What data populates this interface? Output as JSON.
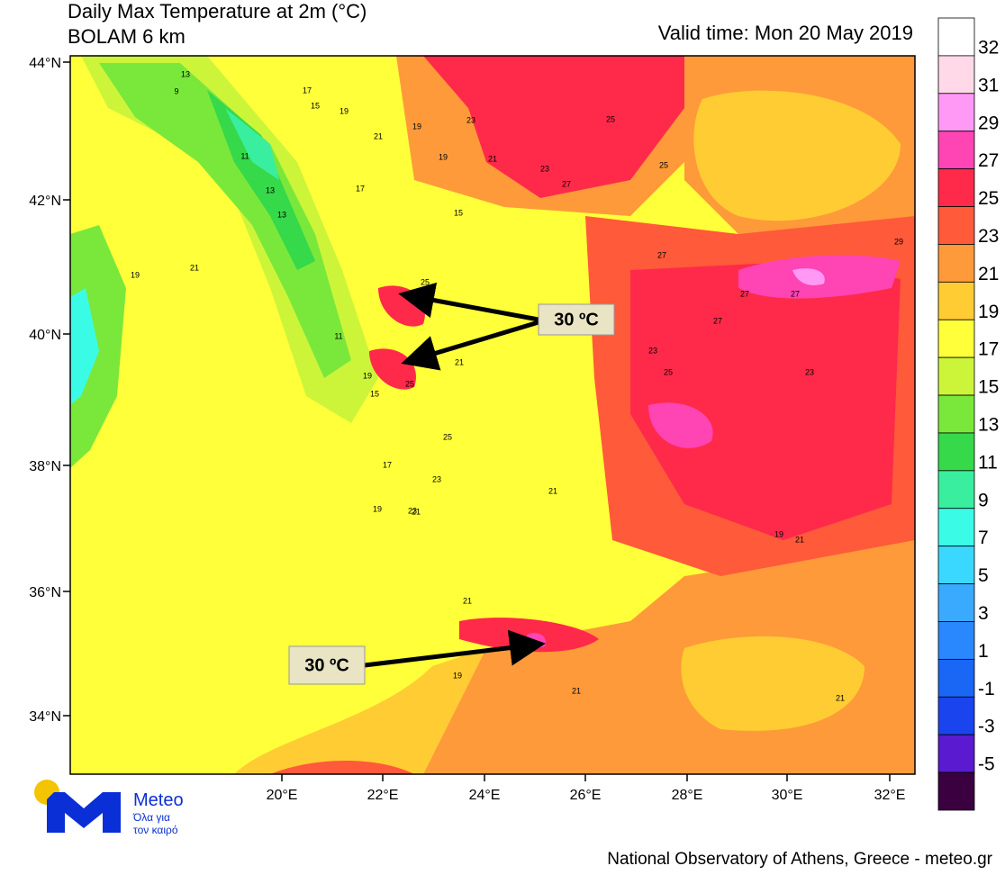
{
  "header": {
    "title": "Daily Max Temperature at 2m (°C)",
    "subtitle": "BOLAM 6 km",
    "valid_time": "Valid time: Mon 20 May 2019"
  },
  "map": {
    "lat_labels": [
      "44°N",
      "42°N",
      "40°N",
      "38°N",
      "36°N",
      "34°N"
    ],
    "lon_labels": [
      "20°E",
      "22°E",
      "24°E",
      "26°E",
      "28°E",
      "30°E",
      "32°E"
    ],
    "contour_labels": [
      "13",
      "9",
      "11",
      "13",
      "17",
      "15",
      "19",
      "21",
      "23",
      "27",
      "25",
      "19",
      "21",
      "23",
      "25",
      "27",
      "19",
      "17",
      "15",
      "19",
      "21",
      "25",
      "27",
      "29",
      "27",
      "25",
      "23",
      "21",
      "19",
      "17",
      "13",
      "11",
      "15",
      "19",
      "21",
      "23",
      "25",
      "27",
      "23",
      "21",
      "19",
      "21",
      "25",
      "23",
      "21",
      "19",
      "21",
      "21"
    ],
    "annotations": [
      "30 ºC",
      "30 ºC"
    ]
  },
  "colorbar": {
    "top_color": "#ffffff",
    "levels": [
      {
        "label": 32,
        "color": "#ffd9e8"
      },
      {
        "label": 31,
        "color": "#ff99f5"
      },
      {
        "label": 29,
        "color": "#ff44b4"
      },
      {
        "label": 27,
        "color": "#ff2a4a"
      },
      {
        "label": 25,
        "color": "#ff5a3a"
      },
      {
        "label": 23,
        "color": "#ff9a3a"
      },
      {
        "label": 21,
        "color": "#ffcc33"
      },
      {
        "label": 19,
        "color": "#ffff3a"
      },
      {
        "label": 17,
        "color": "#ccf53a"
      },
      {
        "label": 15,
        "color": "#7ae83a"
      },
      {
        "label": 13,
        "color": "#35d94a"
      },
      {
        "label": 11,
        "color": "#3aeea0"
      },
      {
        "label": 9,
        "color": "#3afce6"
      },
      {
        "label": 7,
        "color": "#3ad8ff"
      },
      {
        "label": 5,
        "color": "#3aaaff"
      },
      {
        "label": 3,
        "color": "#2a88ff"
      },
      {
        "label": 1,
        "color": "#1a66f5"
      },
      {
        "label": -1,
        "color": "#1a44ee"
      },
      {
        "label": -3,
        "color": "#5a1ad0"
      },
      {
        "label": -5,
        "color": "#3a0040"
      }
    ]
  },
  "logo": {
    "name": "Meteo",
    "line1": "Όλα για",
    "line2": "τον καιρό"
  },
  "footer": "National Observatory of Athens, Greece - meteo.gr"
}
